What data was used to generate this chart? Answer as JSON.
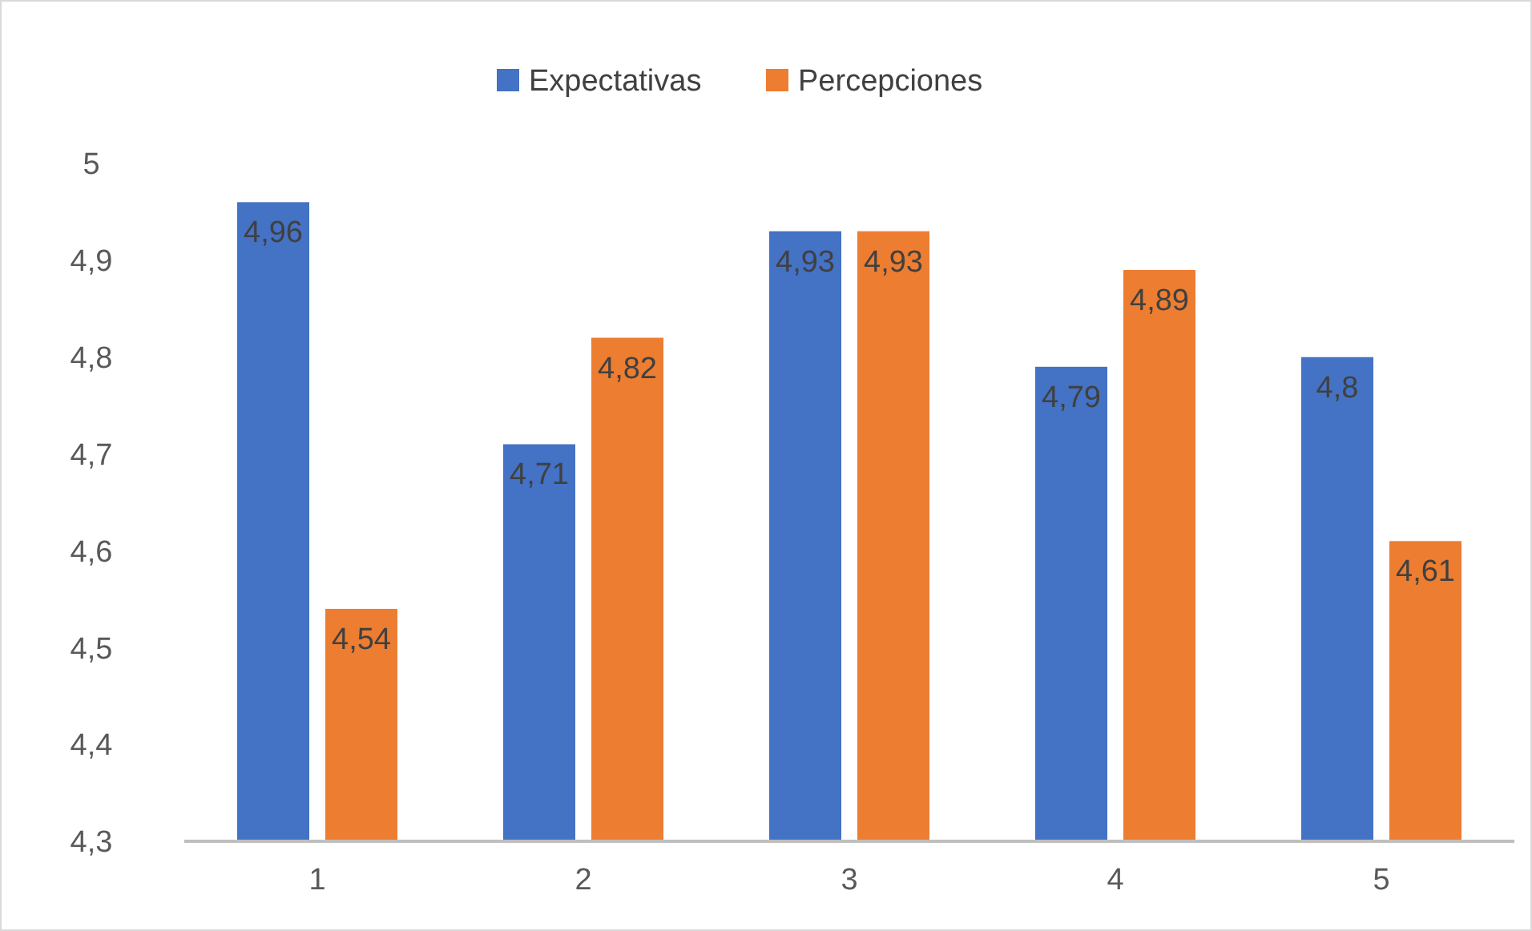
{
  "chart_data": {
    "type": "bar",
    "categories": [
      "1",
      "2",
      "3",
      "4",
      "5"
    ],
    "series": [
      {
        "name": "Expectativas",
        "color": "#4472c4",
        "values": [
          4.96,
          4.71,
          4.93,
          4.79,
          4.8
        ],
        "value_labels": [
          "4,96",
          "4,71",
          "4,93",
          "4,79",
          "4,8"
        ]
      },
      {
        "name": "Percepciones",
        "color": "#ed7d31",
        "values": [
          4.54,
          4.82,
          4.93,
          4.89,
          4.61
        ],
        "value_labels": [
          "4,54",
          "4,82",
          "4,93",
          "4,89",
          "4,61"
        ]
      }
    ],
    "ylim": [
      4.3,
      5
    ],
    "yticks": [
      {
        "value": 4.3,
        "label": "4,3"
      },
      {
        "value": 4.4,
        "label": "4,4"
      },
      {
        "value": 4.5,
        "label": "4,5"
      },
      {
        "value": 4.6,
        "label": "4,6"
      },
      {
        "value": 4.7,
        "label": "4,7"
      },
      {
        "value": 4.8,
        "label": "4,8"
      },
      {
        "value": 4.9,
        "label": "4,9"
      },
      {
        "value": 5,
        "label": "5"
      }
    ],
    "grid": false,
    "legend": "top"
  }
}
